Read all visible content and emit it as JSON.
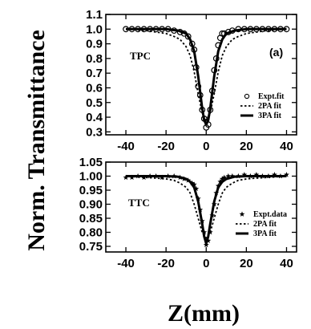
{
  "figure": {
    "ylabel": "Norm. Transmittance",
    "xlabel": "Z(mm)"
  },
  "chart_data": [
    {
      "type": "scatter",
      "panel_label": "TPC",
      "letter": "(a)",
      "xlim": [
        -50,
        45
      ],
      "ylim": [
        0.28,
        1.1
      ],
      "xticks": [
        -40,
        -20,
        0,
        20,
        40
      ],
      "xtick_labels": [
        "-40",
        "-20",
        "0",
        "20",
        "40"
      ],
      "yticks": [
        0.3,
        0.4,
        0.5,
        0.6,
        0.7,
        0.8,
        0.9,
        1.0,
        1.1
      ],
      "ytick_labels": [
        "0.3",
        "0.4",
        "0.5",
        "0.6",
        "0.7",
        "0.8",
        "0.9",
        "1.0",
        "1.1"
      ],
      "legend": [
        {
          "label": "Expt.fit",
          "style": "circle"
        },
        {
          "label": "2PA fit",
          "style": "dash"
        },
        {
          "label": "3PA fit",
          "style": "solid"
        }
      ],
      "series": [
        {
          "style": "circle",
          "x": [
            -40,
            -37,
            -34,
            -31,
            -28,
            -25,
            -22,
            -19,
            -16,
            -13,
            -11,
            -9,
            -7,
            -6,
            -5,
            -4,
            -3,
            -2,
            -1,
            0,
            1,
            2,
            3,
            4,
            5,
            6,
            7,
            8,
            9,
            11,
            13,
            16,
            19,
            22,
            25,
            28,
            31,
            34,
            37,
            40
          ],
          "y": [
            1.0,
            1.0,
            1.0,
            1.0,
            1.0,
            1.0,
            1.0,
            1.0,
            0.99,
            0.98,
            0.97,
            0.95,
            0.9,
            0.86,
            0.74,
            0.61,
            0.55,
            0.45,
            0.39,
            0.33,
            0.35,
            0.45,
            0.58,
            0.72,
            0.8,
            0.89,
            0.94,
            0.97,
            0.97,
            0.98,
            0.99,
            1.0,
            1.0,
            1.0,
            1.0,
            1.0,
            1.0,
            1.0,
            1.0,
            1.0
          ]
        },
        {
          "style": "dash",
          "x": [
            -40,
            -30,
            -25,
            -20,
            -16,
            -13,
            -10,
            -8,
            -6,
            -4,
            -2,
            0,
            2,
            4,
            6,
            8,
            10,
            13,
            16,
            20,
            25,
            30,
            40
          ],
          "y": [
            1.0,
            0.99,
            0.98,
            0.97,
            0.95,
            0.93,
            0.88,
            0.82,
            0.71,
            0.56,
            0.43,
            0.38,
            0.43,
            0.56,
            0.71,
            0.82,
            0.88,
            0.93,
            0.95,
            0.97,
            0.98,
            0.99,
            1.0
          ]
        },
        {
          "style": "solid",
          "x": [
            -40,
            -20,
            -14,
            -10,
            -8,
            -6,
            -4,
            -3,
            -2,
            -1,
            0,
            1,
            2,
            3,
            4,
            6,
            8,
            10,
            14,
            20,
            40
          ],
          "y": [
            1.0,
            1.0,
            0.99,
            0.97,
            0.93,
            0.85,
            0.68,
            0.57,
            0.46,
            0.38,
            0.35,
            0.38,
            0.46,
            0.57,
            0.68,
            0.85,
            0.93,
            0.97,
            0.99,
            1.0,
            1.0
          ]
        }
      ]
    },
    {
      "type": "scatter",
      "panel_label": "TTC",
      "xlim": [
        -50,
        45
      ],
      "ylim": [
        0.73,
        1.05
      ],
      "xticks": [
        -40,
        -20,
        0,
        20,
        40
      ],
      "xtick_labels": [
        "-40",
        "-20",
        "0",
        "20",
        "40"
      ],
      "yticks": [
        0.75,
        0.8,
        0.85,
        0.9,
        0.95,
        1.0,
        1.05
      ],
      "ytick_labels": [
        "0.75",
        "0.80",
        "0.85",
        "0.90",
        "0.95",
        "1.00",
        "1.05"
      ],
      "legend": [
        {
          "label": "Expt.data",
          "style": "star"
        },
        {
          "label": "2PA fit",
          "style": "dash"
        },
        {
          "label": "3PA fit",
          "style": "solid"
        }
      ],
      "series": [
        {
          "style": "star",
          "x": [
            -40,
            -37,
            -34,
            -31,
            -28,
            -25,
            -22,
            -19,
            -16,
            -13,
            -11,
            -9,
            -7,
            -6,
            -5,
            -4,
            -3,
            -2,
            -1,
            0,
            1,
            2,
            3,
            4,
            5,
            6,
            7,
            8,
            9,
            11,
            13,
            16,
            19,
            22,
            25,
            28,
            31,
            34,
            37,
            40
          ],
          "y": [
            0.995,
            0.995,
            1.0,
            0.995,
            1.0,
            1.0,
            0.995,
            1.0,
            1.0,
            0.995,
            0.99,
            0.985,
            0.975,
            0.97,
            0.955,
            0.92,
            0.88,
            0.84,
            0.8,
            0.755,
            0.77,
            0.8,
            0.86,
            0.9,
            0.94,
            0.965,
            0.98,
            0.99,
            0.995,
            1.0,
            1.0,
            1.0,
            1.005,
            1.0,
            1.005,
            1.0,
            1.0,
            1.005,
            1.0,
            1.005
          ]
        },
        {
          "style": "dash",
          "x": [
            -40,
            -30,
            -25,
            -20,
            -16,
            -13,
            -10,
            -8,
            -6,
            -4,
            -2,
            0,
            2,
            4,
            6,
            8,
            10,
            13,
            16,
            20,
            25,
            30,
            40
          ],
          "y": [
            1.0,
            0.995,
            0.993,
            0.99,
            0.985,
            0.975,
            0.96,
            0.94,
            0.9,
            0.85,
            0.8,
            0.78,
            0.8,
            0.85,
            0.9,
            0.94,
            0.96,
            0.975,
            0.985,
            0.99,
            0.993,
            0.995,
            1.0
          ]
        },
        {
          "style": "solid",
          "x": [
            -40,
            -20,
            -14,
            -10,
            -8,
            -6,
            -4,
            -3,
            -2,
            -1,
            0,
            1,
            2,
            3,
            4,
            6,
            8,
            10,
            14,
            20,
            40
          ],
          "y": [
            1.0,
            1.0,
            0.998,
            0.99,
            0.98,
            0.96,
            0.91,
            0.87,
            0.83,
            0.785,
            0.76,
            0.785,
            0.83,
            0.87,
            0.91,
            0.96,
            0.98,
            0.99,
            0.998,
            1.0,
            1.0
          ]
        }
      ]
    }
  ]
}
